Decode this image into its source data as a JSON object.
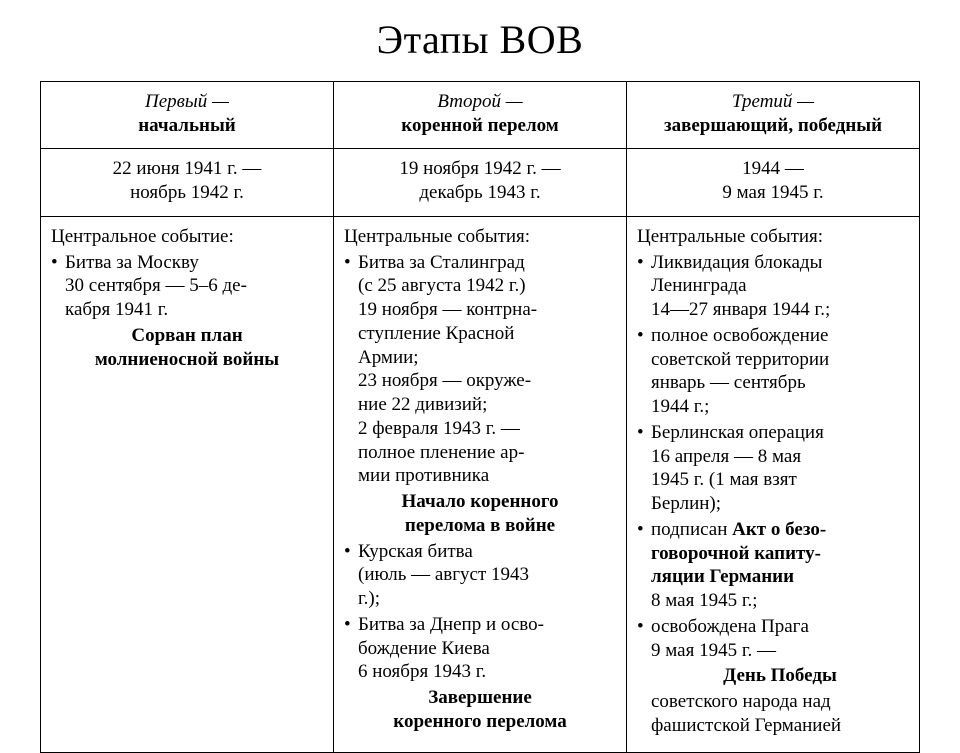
{
  "title": "Этапы ВОВ",
  "table": {
    "columns": [
      {
        "name_italic": "Первый —",
        "name_bold": "начальный",
        "dates_l1": "22 июня 1941 г. —",
        "dates_l2": "ноябрь 1942 г.",
        "lead": "Центральное событие:",
        "bullet1_l1": "Битва за Москву",
        "bullet1_l2": "30 сентября — 5–6 де-",
        "bullet1_l3": "кабря 1941 г.",
        "emph_l1": "Сорван план",
        "emph_l2": "молниеносной войны"
      },
      {
        "name_italic": "Второй —",
        "name_bold": "коренной перелом",
        "dates_l1": "19 ноября 1942 г. —",
        "dates_l2": "декабрь 1943 г.",
        "lead": "Центральные события:",
        "b1_l1": "Битва за Сталинград",
        "b1_l2": "(с 25 августа 1942 г.)",
        "b1_l3": "19 ноября — контрна-",
        "b1_l4": "ступление Красной",
        "b1_l5": "Армии;",
        "b1_l6": "23 ноября — окруже-",
        "b1_l7": "ние 22 дивизий;",
        "b1_l8": "2 февраля 1943 г. —",
        "b1_l9": "полное пленение ар-",
        "b1_l10": "мии противника",
        "emph1_l1": "Начало коренного",
        "emph1_l2": "перелома в войне",
        "b2_l1": "Курская битва",
        "b2_l2": "(июль — август 1943",
        "b2_l3": "г.);",
        "b3_l1": "Битва за Днепр и осво-",
        "b3_l2": "бождение Киева",
        "b3_l3": "6 ноября 1943 г.",
        "emph2_l1": "Завершение",
        "emph2_l2": "коренного перелома"
      },
      {
        "name_italic": "Третий —",
        "name_bold": "завершающий, победный",
        "dates_l1": "1944 —",
        "dates_l2": "9 мая 1945 г.",
        "lead": "Центральные события:",
        "b1_l1": "Ликвидация блокады",
        "b1_l2": "Ленинграда",
        "b1_l3": "14—27 января 1944 г.;",
        "b2_l1": "полное освобождение",
        "b2_l2": "советской территории",
        "b2_l3": "январь — сентябрь",
        "b2_l4": "1944 г.;",
        "b3_l1": "Берлинская операция",
        "b3_l2": "16 апреля — 8 мая",
        "b3_l3": "1945 г. (1 мая взят",
        "b3_l4": "Берлин);",
        "b4_pre": "подписан ",
        "b4_bold_l1": "Акт о безо-",
        "b4_bold_l2": "говорочной капиту-",
        "b4_bold_l3": "ляции Германии",
        "b4_l4": "8 мая 1945 г.;",
        "b5_l1": "освобождена Прага",
        "b5_l2": "9 мая 1945 г. —",
        "b5_bold": "День Победы",
        "b5_l4": "советского народа над",
        "b5_l5": "фашистской Германией"
      }
    ],
    "border_color": "#000000",
    "background_color": "#ffffff",
    "font_family": "Times New Roman",
    "body_fontsize_pt": 14,
    "title_fontsize_pt": 30
  }
}
